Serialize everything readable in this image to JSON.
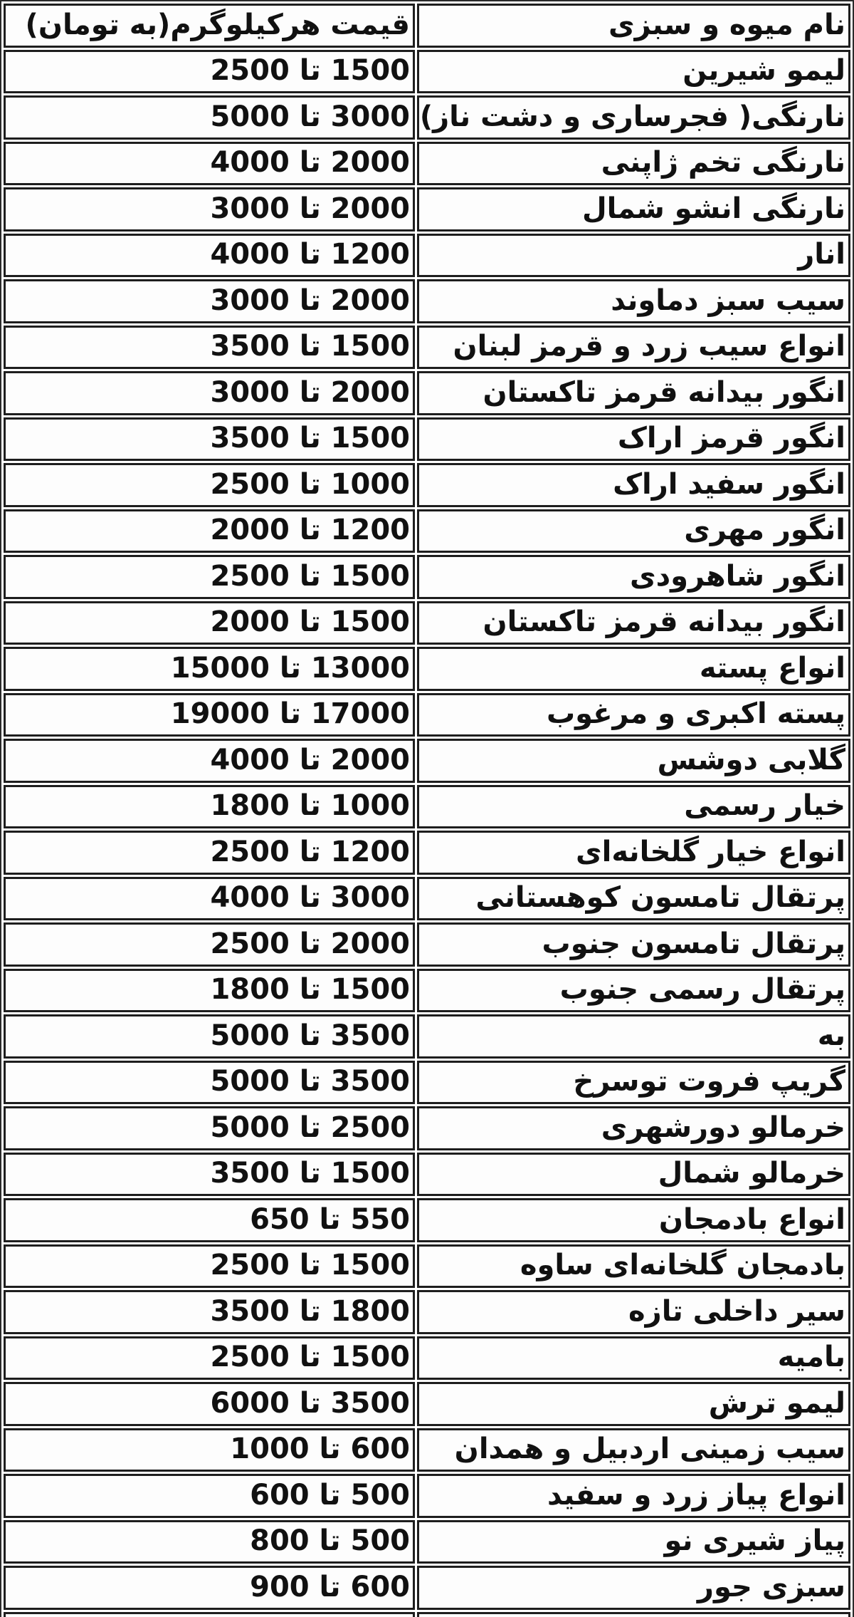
{
  "colors": {
    "outer_border": "#2a2a2a",
    "cell_border": "#1e1e1e",
    "cell_bg": "#fdfdfd",
    "text": "#111111"
  },
  "table": {
    "header": {
      "name_label": "نام میوه و  سبزی",
      "price_label": "قیمت هرکیلوگرم(به تومان)"
    },
    "rows": [
      {
        "name": "لیمو شیرین",
        "price": "1500 تا 2500"
      },
      {
        "name": "نارنگی( فجرساری و دشت ناز)",
        "price": "3000 تا 5000"
      },
      {
        "name": "نارنگی تخم ژاپنی",
        "price": "2000 تا 4000"
      },
      {
        "name": "نارنگی انشو شمال",
        "price": "2000 تا 3000"
      },
      {
        "name": "انار",
        "price": "1200 تا 4000"
      },
      {
        "name": "سیب سبز دماوند",
        "price": "2000 تا 3000"
      },
      {
        "name": "انواع سیب زرد و قرمز لبنان",
        "price": "1500 تا 3500"
      },
      {
        "name": "انگور بیدانه قرمز تاکستان",
        "price": "2000 تا 3000"
      },
      {
        "name": "انگور قرمز اراک",
        "price": "1500 تا 3500"
      },
      {
        "name": "انگور سفید اراک",
        "price": "1000 تا 2500"
      },
      {
        "name": "انگور مهری",
        "price": "1200 تا 2000"
      },
      {
        "name": "انگور شاهرودی",
        "price": "1500 تا 2500"
      },
      {
        "name": "انگور بیدانه قرمز تاکستان",
        "price": "1500 تا 2000"
      },
      {
        "name": "انواع پسته",
        "price": "13000 تا 15000"
      },
      {
        "name": "پسته اکبری و مرغوب",
        "price": "17000 تا 19000"
      },
      {
        "name": "گلابی دوشس",
        "price": "2000 تا 4000"
      },
      {
        "name": "خیار رسمی",
        "price": "1000 تا 1800"
      },
      {
        "name": "انواع خیار گلخانه‌ای",
        "price": "1200 تا 2500"
      },
      {
        "name": "پرتقال تامسون کوهستانی",
        "price": "3000 تا 4000"
      },
      {
        "name": "پرتقال تامسون جنوب",
        "price": "2000 تا 2500"
      },
      {
        "name": "پرتقال رسمی جنوب",
        "price": "1500 تا 1800"
      },
      {
        "name": "به",
        "price": "3500 تا 5000"
      },
      {
        "name": "گریپ فروت توسرخ",
        "price": "3500 تا 5000"
      },
      {
        "name": "خرمالو دورشهری",
        "price": "2500 تا 5000"
      },
      {
        "name": "خرمالو شمال",
        "price": "1500 تا 3500"
      },
      {
        "name": "انواع بادمجان",
        "price": "550 تا 650"
      },
      {
        "name": "بادمجان گلخانه‌ای ساوه",
        "price": "1500 تا 2500"
      },
      {
        "name": "سیر داخلی تازه",
        "price": "1800 تا 3500"
      },
      {
        "name": "بامیه",
        "price": "1500 تا 2500"
      },
      {
        "name": "لیمو ترش",
        "price": "3500 تا 6000"
      },
      {
        "name": "سیب زمینی اردبیل و همدان",
        "price": "600 تا 1000"
      },
      {
        "name": "انواع پیاز زرد و سفید",
        "price": "500 تا 600"
      },
      {
        "name": "پیاز شیری نو",
        "price": "500 تا 800"
      },
      {
        "name": "سبزی جور",
        "price": "600 تا 900"
      }
    ]
  }
}
